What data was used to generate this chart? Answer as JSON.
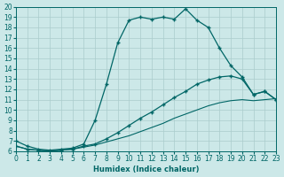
{
  "xlabel": "Humidex (Indice chaleur)",
  "background_color": "#cce8e8",
  "grid_color": "#aacccc",
  "line_color": "#006666",
  "xlim": [
    0,
    23
  ],
  "ylim": [
    6,
    20
  ],
  "xticks": [
    0,
    1,
    2,
    3,
    4,
    5,
    6,
    7,
    8,
    9,
    10,
    11,
    12,
    13,
    14,
    15,
    16,
    17,
    18,
    19,
    20,
    21,
    22,
    23
  ],
  "yticks": [
    6,
    7,
    8,
    9,
    10,
    11,
    12,
    13,
    14,
    15,
    16,
    17,
    18,
    19,
    20
  ],
  "curve1_x": [
    0,
    1,
    2,
    3,
    4,
    5,
    6,
    7,
    8,
    9,
    10,
    11,
    12,
    13,
    14,
    15,
    16,
    17,
    18,
    19,
    20,
    21,
    22,
    23
  ],
  "curve1_y": [
    7.0,
    6.5,
    6.2,
    6.1,
    6.2,
    6.3,
    6.7,
    9.0,
    12.5,
    16.5,
    18.7,
    19.0,
    18.8,
    19.0,
    18.8,
    19.8,
    18.7,
    18.0,
    16.0,
    14.3,
    13.2,
    11.5,
    11.8,
    11.0
  ],
  "curve2_x": [
    0,
    1,
    2,
    3,
    4,
    5,
    6,
    7,
    8,
    9,
    10,
    11,
    12,
    13,
    14,
    15,
    16,
    17,
    18,
    19,
    20,
    21,
    22,
    23
  ],
  "curve2_y": [
    6.5,
    6.2,
    6.1,
    6.0,
    6.1,
    6.2,
    6.5,
    6.7,
    7.2,
    7.8,
    8.5,
    9.2,
    9.8,
    10.5,
    11.2,
    11.8,
    12.5,
    12.9,
    13.2,
    13.3,
    13.0,
    11.5,
    11.8,
    11.0
  ],
  "curve3_x": [
    0,
    1,
    2,
    3,
    4,
    5,
    6,
    7,
    8,
    9,
    10,
    11,
    12,
    13,
    14,
    15,
    16,
    17,
    18,
    19,
    20,
    21,
    22,
    23
  ],
  "curve3_y": [
    6.5,
    6.2,
    6.1,
    6.0,
    6.1,
    6.2,
    6.4,
    6.6,
    6.9,
    7.2,
    7.5,
    7.9,
    8.3,
    8.7,
    9.2,
    9.6,
    10.0,
    10.4,
    10.7,
    10.9,
    11.0,
    10.9,
    11.0,
    11.1
  ],
  "curve1_has_markers": true,
  "curve2_has_markers": true,
  "curve3_has_markers": false
}
